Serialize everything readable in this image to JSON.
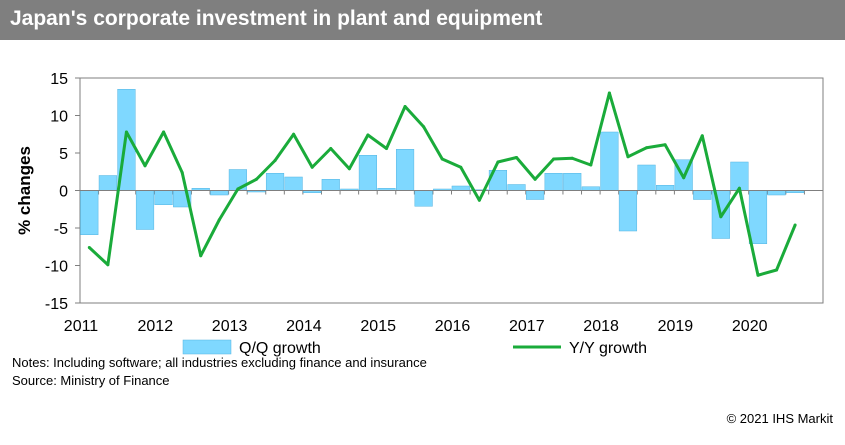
{
  "title": "Japan's corporate investment in plant and equipment",
  "notes": "Notes: Including software; all industries excluding finance and insurance",
  "source": "Source: Ministry of Finance",
  "copyright": "© 2021 IHS Markit",
  "colors": {
    "title_bg": "#7f7f7f",
    "bar": "#7fd8ff",
    "bar_stroke": "#56b4e0",
    "line": "#1aab3a"
  },
  "chart_data": {
    "type": "bar",
    "title": "",
    "ylabel": "% changes",
    "xlabel": "",
    "ylim": [
      -15,
      15
    ],
    "yticks": [
      15,
      10,
      5,
      0,
      -5,
      -10,
      -15
    ],
    "grid": false,
    "legend_position": "bottom",
    "years": [
      "2011",
      "2012",
      "2013",
      "2014",
      "2015",
      "2016",
      "2017",
      "2018",
      "2019",
      "2020"
    ],
    "series": [
      {
        "name": "Q/Q growth",
        "type": "bar",
        "values": [
          -5.9,
          2.0,
          13.5,
          -5.2,
          -1.9,
          -2.2,
          0.3,
          -0.6,
          2.8,
          -0.2,
          2.3,
          1.8,
          -0.3,
          1.5,
          0.2,
          4.7,
          0.3,
          5.5,
          -2.1,
          0.2,
          0.6,
          0.1,
          2.7,
          0.8,
          -1.2,
          2.3,
          2.3,
          0.5,
          7.8,
          -5.4,
          3.4,
          0.7,
          4.1,
          -1.2,
          -6.4,
          3.8,
          -7.1,
          -0.6,
          -0.3
        ]
      },
      {
        "name": "Y/Y growth",
        "type": "line",
        "values": [
          -7.6,
          -9.9,
          7.8,
          3.3,
          7.8,
          2.4,
          -8.7,
          -3.9,
          0.2,
          1.5,
          4.0,
          7.5,
          3.1,
          5.6,
          2.9,
          7.4,
          5.6,
          11.2,
          8.5,
          4.2,
          3.1,
          -1.3,
          3.8,
          4.4,
          1.5,
          4.2,
          4.3,
          3.4,
          13.0,
          4.5,
          5.7,
          6.1,
          1.7,
          7.3,
          -3.5,
          0.3,
          -11.3,
          -10.6,
          -4.6
        ]
      }
    ]
  }
}
